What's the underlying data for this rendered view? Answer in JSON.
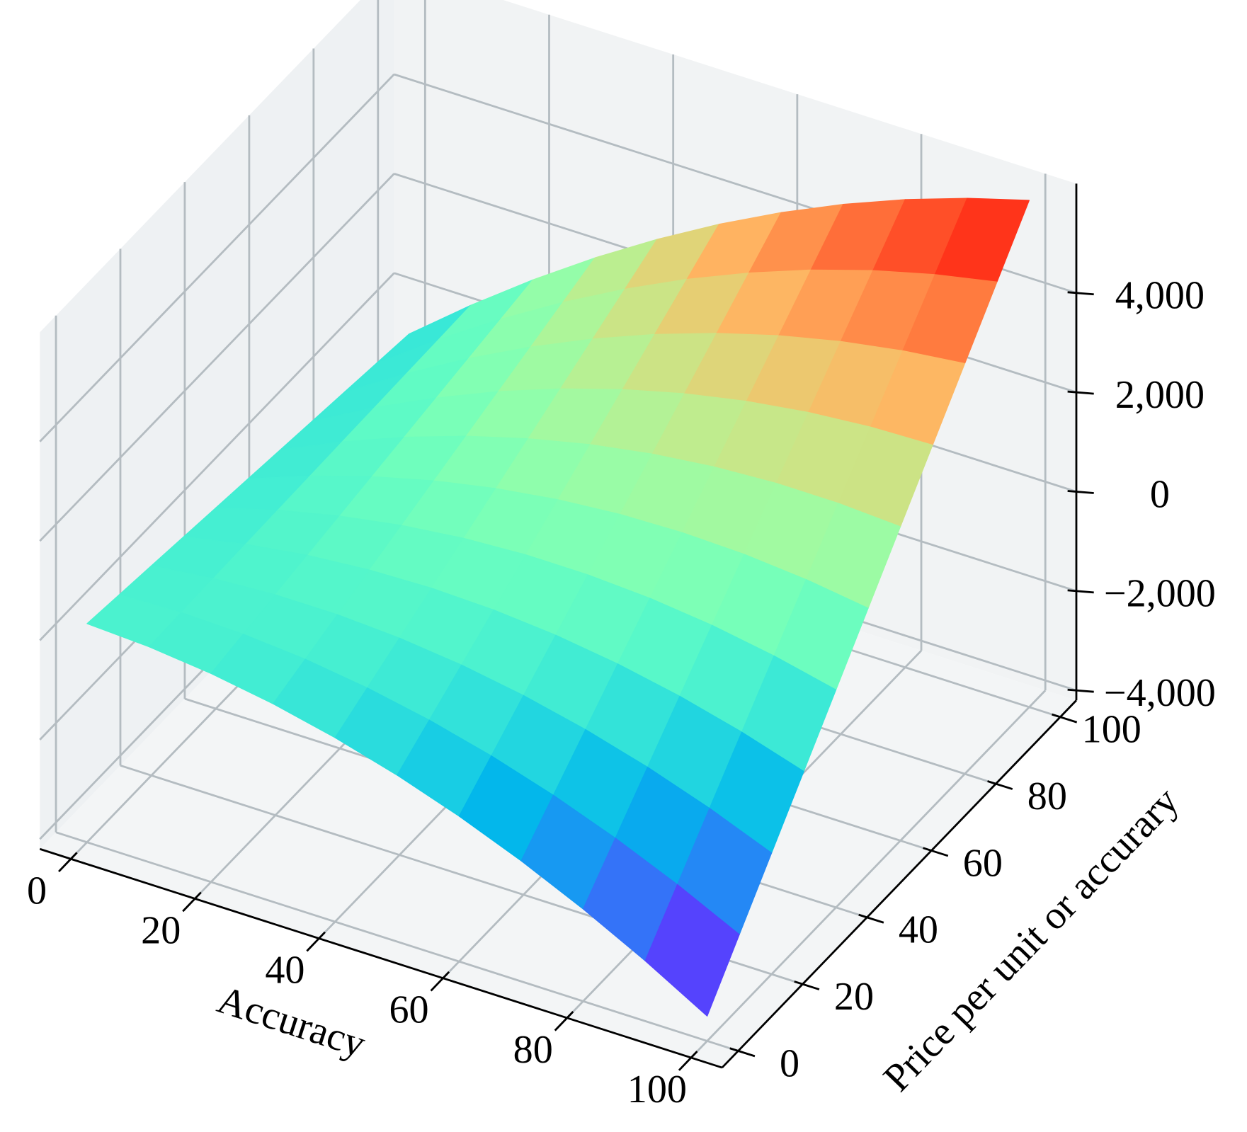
{
  "chart_data": {
    "type": "surface",
    "x_label": "Accuracy",
    "y_label": "Price per unit or accurary",
    "x": [
      0,
      10,
      20,
      30,
      40,
      50,
      60,
      70,
      80,
      90,
      100
    ],
    "y": [
      0,
      10,
      20,
      30,
      40,
      50,
      60,
      70,
      80,
      90,
      100
    ],
    "z": [
      [
        200,
        134,
        -4,
        -214,
        -496,
        -850,
        -1276,
        -1774,
        -2344,
        -2986,
        -3700
      ],
      [
        111,
        150,
        117,
        12,
        -165,
        -413,
        -733,
        -1125,
        -1588,
        -2123,
        -2730
      ],
      [
        22,
        165,
        237,
        238,
        166,
        24,
        -190,
        -475,
        -832,
        -1260,
        -1760
      ],
      [
        -67,
        181,
        358,
        463,
        498,
        461,
        353,
        174,
        -76,
        -398,
        -790
      ],
      [
        -156,
        196,
        478,
        689,
        829,
        898,
        896,
        824,
        680,
        465,
        180
      ],
      [
        -245,
        212,
        599,
        915,
        1160,
        1335,
        1439,
        1473,
        1436,
        1328,
        1150
      ],
      [
        -334,
        228,
        720,
        1141,
        1491,
        1772,
        1982,
        2122,
        2192,
        2191,
        2120
      ],
      [
        -423,
        243,
        840,
        1367,
        1822,
        2209,
        2525,
        2772,
        2948,
        3054,
        3090
      ],
      [
        -512,
        259,
        961,
        1592,
        2154,
        2646,
        3068,
        3421,
        3704,
        3916,
        4060
      ],
      [
        -601,
        274,
        1081,
        1818,
        2485,
        3083,
        3611,
        4071,
        4460,
        4779,
        5030
      ],
      [
        -690,
        290,
        1202,
        2044,
        2816,
        3520,
        4154,
        4720,
        5216,
        5642,
        6000
      ]
    ],
    "cmap": "rainbow",
    "xlim": [
      -5,
      105
    ],
    "ylim": [
      -5,
      105
    ],
    "zlim": [
      -4200,
      6200
    ],
    "xticks": [
      0,
      20,
      40,
      60,
      80,
      100
    ],
    "yticks": [
      0,
      20,
      40,
      60,
      80,
      100
    ],
    "zticks": [
      {
        "value": -4000,
        "label": "−4,000"
      },
      {
        "value": -2000,
        "label": "−2,000"
      },
      0,
      {
        "value": 2000,
        "label": "2,000"
      },
      {
        "value": 4000,
        "label": "4,000"
      }
    ],
    "grid": true
  }
}
